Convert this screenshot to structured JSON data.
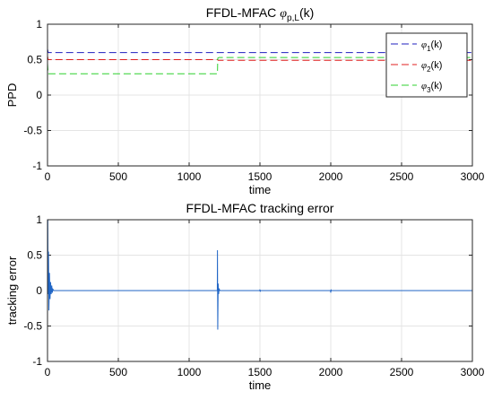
{
  "chart_data": [
    {
      "type": "line",
      "title": "FFDL-MFAC",
      "title_symbol": "φ",
      "title_subscript": "p,L",
      "title_suffix": "(k)",
      "xlabel": "time",
      "ylabel": "PPD",
      "xlim": [
        0,
        3000
      ],
      "ylim": [
        -1,
        1
      ],
      "xticks": [
        "0",
        "500",
        "1000",
        "1500",
        "2000",
        "2500",
        "3000"
      ],
      "yticks": [
        "-1",
        "-0.5",
        "0",
        "0.5",
        "1"
      ],
      "grid": true,
      "legend_position": "top-right",
      "series": [
        {
          "name": "φ1(k)",
          "symbol": "φ",
          "subscript": "1",
          "suffix": "(k)",
          "color": "#1f1fbf",
          "dash": "dashed",
          "points": [
            [
              0,
              0.65
            ],
            [
              5,
              0.6
            ],
            [
              3000,
              0.6
            ]
          ]
        },
        {
          "name": "φ2(k)",
          "symbol": "φ",
          "subscript": "2",
          "suffix": "(k)",
          "color": "#e01f1f",
          "dash": "dashed",
          "points": [
            [
              0,
              0.55
            ],
            [
              5,
              0.5
            ],
            [
              1200,
              0.5
            ],
            [
              1205,
              0.49
            ],
            [
              3000,
              0.49
            ]
          ]
        },
        {
          "name": "φ3(k)",
          "symbol": "φ",
          "subscript": "3",
          "suffix": "(k)",
          "color": "#2fd12f",
          "dash": "dashed",
          "points": [
            [
              0,
              0.45
            ],
            [
              5,
              0.3
            ],
            [
              1200,
              0.3
            ],
            [
              1202,
              0.52
            ],
            [
              1210,
              0.53
            ],
            [
              3000,
              0.53
            ]
          ]
        }
      ]
    },
    {
      "type": "line",
      "title": "FFDL-MFAC tracking error",
      "xlabel": "time",
      "ylabel": "tracking error",
      "xlim": [
        0,
        3000
      ],
      "ylim": [
        -1,
        1
      ],
      "xticks": [
        "0",
        "500",
        "1000",
        "1500",
        "2000",
        "2500",
        "3000"
      ],
      "yticks": [
        "-1",
        "-0.5",
        "0",
        "0.5",
        "1"
      ],
      "grid": true,
      "series": [
        {
          "color": "#2166c6",
          "dash": "solid",
          "points": [
            [
              0,
              0.0
            ],
            [
              2,
              1.0
            ],
            [
              4,
              -0.05
            ],
            [
              7,
              0.55
            ],
            [
              10,
              -0.28
            ],
            [
              14,
              0.25
            ],
            [
              18,
              -0.12
            ],
            [
              22,
              0.12
            ],
            [
              26,
              -0.05
            ],
            [
              30,
              0.07
            ],
            [
              34,
              -0.03
            ],
            [
              38,
              0.02
            ],
            [
              45,
              0.0
            ],
            [
              1196,
              0.0
            ],
            [
              1199,
              0.0
            ],
            [
              1200,
              0.57
            ],
            [
              1202,
              -0.55
            ],
            [
              1205,
              0.1
            ],
            [
              1208,
              -0.05
            ],
            [
              1212,
              0.02
            ],
            [
              1218,
              0.0
            ],
            [
              1498,
              0.0
            ],
            [
              1500,
              0.015
            ],
            [
              1502,
              -0.015
            ],
            [
              1504,
              0.0
            ],
            [
              1998,
              0.0
            ],
            [
              2000,
              -0.03
            ],
            [
              2002,
              0.015
            ],
            [
              2004,
              0.0
            ],
            [
              3000,
              0.0
            ]
          ]
        }
      ]
    }
  ]
}
